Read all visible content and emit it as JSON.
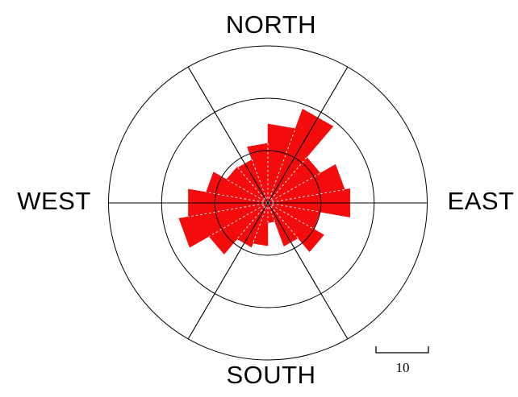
{
  "chart_data": {
    "type": "bar",
    "subtype": "wind-rose-polar-histogram",
    "title": "",
    "angle_convention": "degrees counterclockwise from East",
    "sector_width_deg": 20,
    "sector_centers_deg": [
      0,
      20,
      40,
      60,
      80,
      100,
      120,
      140,
      160,
      180,
      200,
      220,
      240,
      260,
      280,
      300,
      320,
      340
    ],
    "values": [
      15.7,
      14.7,
      11.4,
      19.1,
      15.1,
      11.4,
      8.8,
      9.0,
      11.8,
      15.2,
      17.0,
      12.8,
      9.0,
      8.2,
      3.8,
      8.8,
      12.2,
      10.0
    ],
    "ring_values": [
      10,
      20,
      30
    ],
    "spoke_angles_deg": [
      0,
      60,
      120
    ],
    "grid_on": true,
    "legend_position": "none",
    "scale_bar": {
      "label": "10",
      "length_units": 10
    },
    "compass_labels": {
      "north": "NORTH",
      "east": "EAST",
      "south": "SOUTH",
      "west": "WEST"
    },
    "colors": {
      "petal": "#f40b0b",
      "grid": "#000000",
      "sector_divider": "#ffffff",
      "background": "#ffffff"
    }
  }
}
